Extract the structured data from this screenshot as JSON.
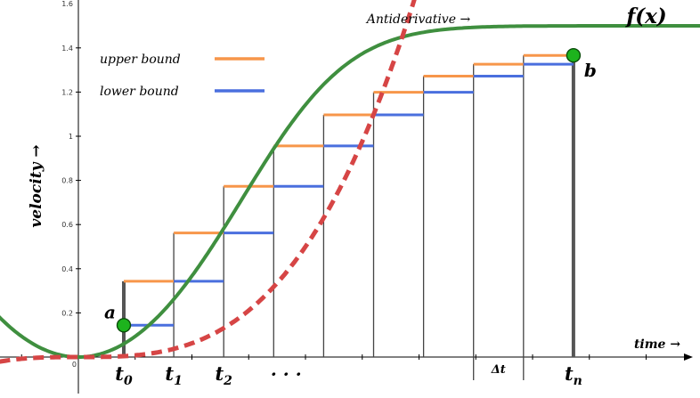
{
  "chart_data": {
    "type": "line",
    "title": "",
    "xlabel": "time →",
    "ylabel": "velocity →",
    "y_ticks": [
      "0.2",
      "0.4",
      "0.6",
      "0.8",
      "1",
      "1.2",
      "1.4"
    ],
    "origin_label": "0",
    "ylim": [
      -0.15,
      1.6
    ],
    "xlim": [
      -0.42,
      3.0
    ],
    "grid": false,
    "legend_placement": "top-left",
    "series": [
      {
        "name": "upper bound",
        "color": "#f7964a"
      },
      {
        "name": "lower bound",
        "color": "#4a6fde"
      }
    ],
    "curve_label": "f(x)",
    "curve_color": "#3f8f3f",
    "antiderivative_label": "Antiderivative →",
    "antiderivative_color": "#d64545",
    "partition_x": [
      0.2,
      0.42,
      0.64,
      0.86,
      1.08,
      1.3,
      1.52,
      1.74,
      1.96,
      2.18
    ],
    "upper_values": [
      0.343,
      0.562,
      0.773,
      0.956,
      1.097,
      1.199,
      1.272,
      1.326,
      1.366
    ],
    "lower_values": [
      0.144,
      0.343,
      0.562,
      0.773,
      0.956,
      1.097,
      1.199,
      1.272,
      1.326
    ],
    "point_a": {
      "label": "a",
      "x": 0.2,
      "y": 0.144
    },
    "point_b": {
      "label": "b",
      "x": 2.18,
      "y": 1.366
    },
    "tick_labels": [
      {
        "text": "t",
        "sub": "0",
        "x": 0.2
      },
      {
        "text": "t",
        "sub": "1",
        "x": 0.42
      },
      {
        "text": "t",
        "sub": "2",
        "x": 0.64
      },
      {
        "text": "t",
        "sub": "n",
        "x": 2.18
      }
    ],
    "ellipsis_label": "· · ·",
    "delta_label": "Δt"
  }
}
